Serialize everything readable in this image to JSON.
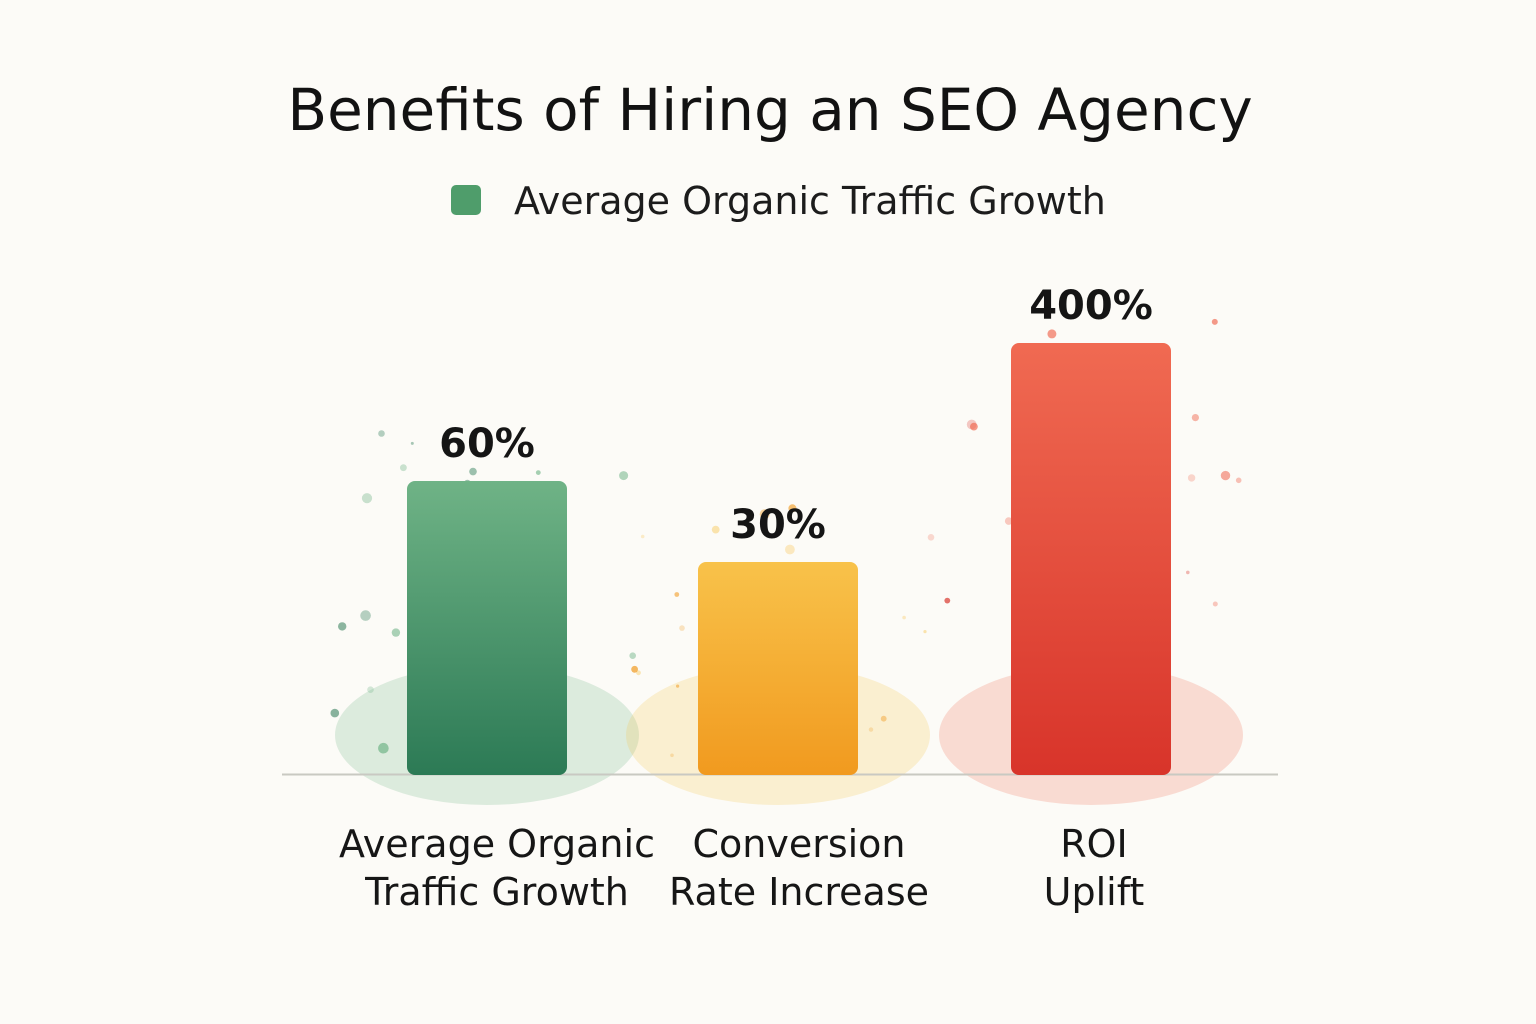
{
  "chart_data": {
    "type": "bar",
    "title": "Benefits of Hiring an SEO Agency",
    "legend": {
      "position": "top",
      "entries": [
        {
          "label": "Average Organic Traffic Growth",
          "color": "#4f9d6b"
        }
      ]
    },
    "categories": [
      [
        "Average Organic",
        "Traffic Growth"
      ],
      [
        "Conversion",
        "Rate Increase"
      ],
      [
        "ROI",
        "Uplift"
      ]
    ],
    "values": [
      60,
      30,
      400
    ],
    "value_labels": [
      "60%",
      "30%",
      "400%"
    ],
    "bar_colors": [
      {
        "light": "#6fb386",
        "dark": "#2c7a55"
      },
      {
        "light": "#f8c24a",
        "dark": "#f19a1f"
      },
      {
        "light": "#f06a52",
        "dark": "#d8342a"
      }
    ],
    "grid": false,
    "axes_visible": false,
    "xlabel": "",
    "ylabel": ""
  }
}
